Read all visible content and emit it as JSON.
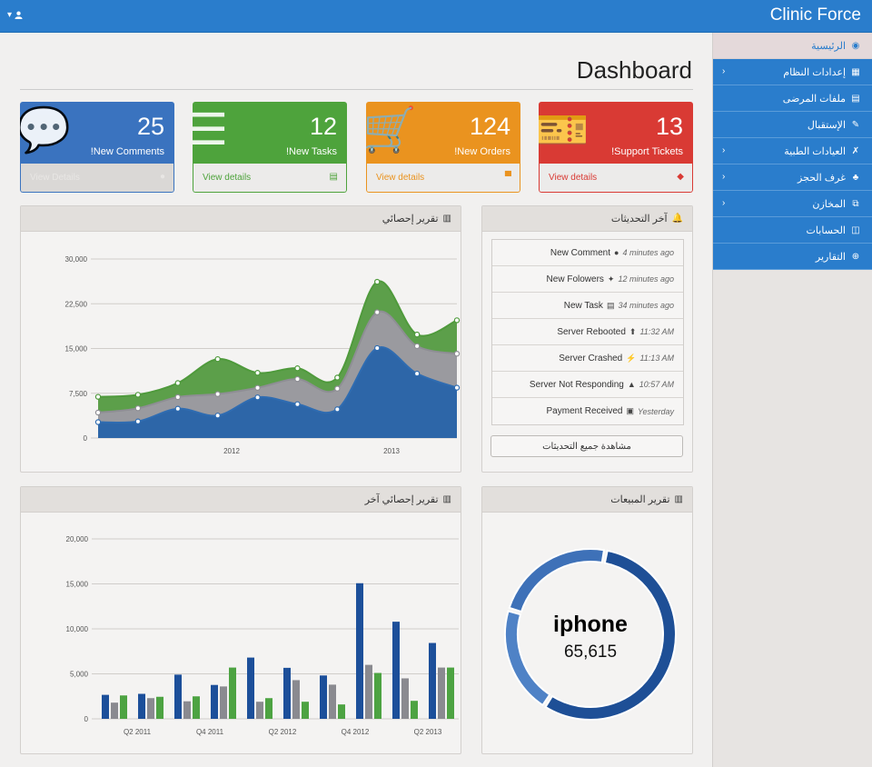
{
  "topbar": {
    "brand": "Clinic Force",
    "user_icon": "user-icon",
    "caret": "▾"
  },
  "page": {
    "title": "Dashboard"
  },
  "sidebar": {
    "items": [
      {
        "label": "الرئيسية",
        "icon": "dashboard-icon",
        "glyph": "◉",
        "chevron": false,
        "active": true
      },
      {
        "label": "إعدادات النظام",
        "icon": "chart-icon",
        "glyph": "▦",
        "chevron": true
      },
      {
        "label": "ملفات المرضى",
        "icon": "table-icon",
        "glyph": "▤",
        "chevron": false
      },
      {
        "label": "الإستقبال",
        "icon": "edit-icon",
        "glyph": "✎",
        "chevron": false
      },
      {
        "label": "العيادات الطبية",
        "icon": "wrench-icon",
        "glyph": "✗",
        "chevron": true
      },
      {
        "label": "غرف الحجز",
        "icon": "sitemap-icon",
        "glyph": "♣",
        "chevron": true
      },
      {
        "label": "المخازن",
        "icon": "copy-icon",
        "glyph": "⧉",
        "chevron": true
      },
      {
        "label": "الحسابات",
        "icon": "columns-icon",
        "glyph": "◫",
        "chevron": false
      },
      {
        "label": "التقارير",
        "icon": "plus-circle-icon",
        "glyph": "⊕",
        "chevron": false
      }
    ]
  },
  "cards": [
    {
      "count": "25",
      "label": "!New Comments",
      "footer": "View Details",
      "color": "#3a73bf",
      "foot_color": "#dad8d6",
      "foot_border": "#3a73bf",
      "foot_text": "#e8e6e4",
      "icon": "comments-icon",
      "glyph": "💬",
      "foot_icon": "comment-icon",
      "foot_glyph": "●"
    },
    {
      "count": "12",
      "label": "!New Tasks",
      "footer": "View details",
      "color": "#4ea33c",
      "foot_color": "#ecebea",
      "foot_border": "#4ea33c",
      "foot_text": "#4ea33c",
      "icon": "tasks-icon",
      "glyph": "☰",
      "foot_icon": "tasks-small-icon",
      "foot_glyph": "▤"
    },
    {
      "count": "124",
      "label": "!New Orders",
      "footer": "View details",
      "color": "#ea931f",
      "foot_color": "#ecebea",
      "foot_border": "#ea931f",
      "foot_text": "#ea931f",
      "icon": "cart-icon",
      "glyph": "🛒",
      "foot_icon": "cart-small-icon",
      "foot_glyph": "▀"
    },
    {
      "count": "13",
      "label": "!Support Tickets",
      "footer": "View details",
      "color": "#d93a34",
      "foot_color": "#ecebea",
      "foot_border": "#d93a34",
      "foot_text": "#d93a34",
      "icon": "ticket-icon",
      "glyph": "🎫",
      "foot_icon": "ticket-small-icon",
      "foot_glyph": "◆"
    }
  ],
  "area_panel": {
    "title": "تقرير إحصائي"
  },
  "bar_panel": {
    "title": "تقرير إحصائي آخر"
  },
  "updates_panel": {
    "title": "آخر التحديثات",
    "items": [
      {
        "label": "New Comment",
        "icon": "comment-icon",
        "glyph": "●",
        "time": "4 minutes ago"
      },
      {
        "label": "New Folowers",
        "icon": "twitter-icon",
        "glyph": "✦",
        "time": "12 minutes ago"
      },
      {
        "label": "New Task",
        "icon": "tasks-icon",
        "glyph": "▤",
        "time": "34 minutes ago"
      },
      {
        "label": "Server Rebooted",
        "icon": "upload-icon",
        "glyph": "⬆",
        "time": "11:32 AM"
      },
      {
        "label": "Server Crashed",
        "icon": "bolt-icon",
        "glyph": "⚡",
        "time": "11:13 AM"
      },
      {
        "label": "Server Not Responding",
        "icon": "warning-icon",
        "glyph": "▲",
        "time": "10:57 AM"
      },
      {
        "label": "Payment Received",
        "icon": "money-icon",
        "glyph": "▣",
        "time": "Yesterday"
      }
    ],
    "view_all": "مشاهدة جميع التحديثات"
  },
  "sales_panel": {
    "title": "تقرير المبيعات"
  },
  "chart_data": [
    {
      "type": "area",
      "xlabel": "",
      "ylabel": "",
      "ylim": [
        0,
        30000
      ],
      "yticks": [
        "0",
        "7,500",
        "15,000",
        "22,500",
        "30,000"
      ],
      "xticks": [
        "2012",
        "2013"
      ],
      "stacked": true,
      "grid": true,
      "series": [
        {
          "color": "#2d66a8",
          "values": [
            2666,
            2778,
            4912,
            3767,
            6810,
            5670,
            4820,
            15073,
            10795,
            8432
          ]
        },
        {
          "color": "#9a9a9f",
          "values": [
            1600,
            2200,
            1950,
            3600,
            1600,
            4200,
            3460,
            6000,
            4600,
            5700
          ]
        },
        {
          "color": "#5c9f4a",
          "values": [
            2640,
            2270,
            2350,
            5860,
            2520,
            1820,
            1850,
            5110,
            1950,
            5600
          ]
        }
      ]
    },
    {
      "type": "bar",
      "xlabel": "",
      "ylabel": "",
      "ylim": [
        0,
        20000
      ],
      "yticks": [
        "0",
        "5,000",
        "10,000",
        "15,000",
        "20,000"
      ],
      "xticks": [
        "Q2 2011",
        "Q4 2011",
        "Q2 2012",
        "Q4 2012",
        "Q2 2013"
      ],
      "grid": true,
      "series": [
        {
          "color": "#1c4f9a",
          "values": [
            2666,
            2778,
            4912,
            3767,
            6810,
            5670,
            4820,
            15073,
            10795,
            8432
          ]
        },
        {
          "color": "#8a8a90",
          "values": [
            1800,
            2300,
            1950,
            3600,
            1900,
            4300,
            3800,
            6000,
            4500,
            5700
          ]
        },
        {
          "color": "#4da342",
          "values": [
            2600,
            2450,
            2500,
            5700,
            2300,
            1900,
            1600,
            5100,
            2000,
            5700
          ]
        }
      ]
    },
    {
      "type": "pie",
      "donut": true,
      "center_label": "iphone",
      "center_value": "65,615",
      "series": [
        {
          "name": "iphone",
          "value": 65615,
          "color": "#1e4f96"
        },
        {
          "value": 24000,
          "color": "#4f82c6"
        },
        {
          "value": 27000,
          "color": "#3e71b8"
        }
      ]
    }
  ]
}
